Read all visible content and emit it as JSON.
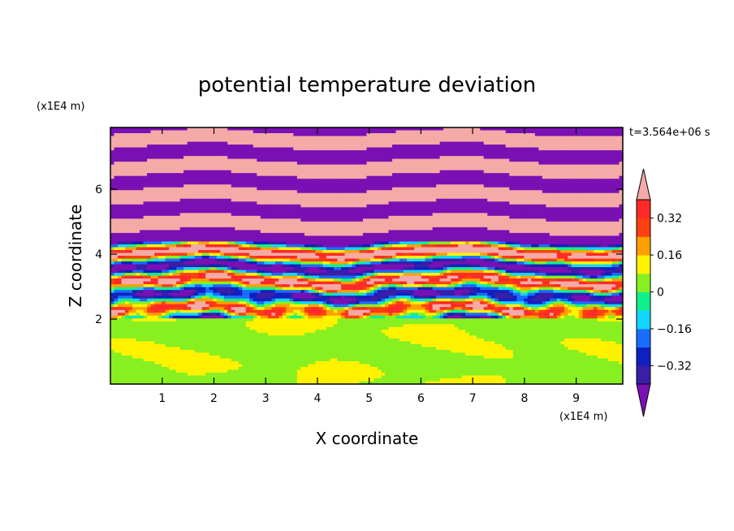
{
  "chart_data": {
    "type": "heatmap",
    "title": "potential temperature deviation",
    "time_label": "t=3.564e+06 s",
    "xlabel": "X coordinate",
    "ylabel": "Z coordinate",
    "x_unit": "(x1E4 m)",
    "y_unit": "(x1E4 m)",
    "xlim": [
      0,
      9.9
    ],
    "ylim": [
      0,
      7.9
    ],
    "x_ticks": [
      {
        "value": 1,
        "label": "1"
      },
      {
        "value": 2,
        "label": "2"
      },
      {
        "value": 3,
        "label": "3"
      },
      {
        "value": 4,
        "label": "4"
      },
      {
        "value": 5,
        "label": "5"
      },
      {
        "value": 6,
        "label": "6"
      },
      {
        "value": 7,
        "label": "7"
      },
      {
        "value": 8,
        "label": "8"
      },
      {
        "value": 9,
        "label": "9"
      }
    ],
    "y_ticks": [
      {
        "value": 2,
        "label": "2"
      },
      {
        "value": 4,
        "label": "4"
      },
      {
        "value": 6,
        "label": "6"
      }
    ],
    "colorbar": {
      "levels": [
        -0.4,
        -0.32,
        -0.24,
        -0.16,
        -0.08,
        0,
        0.08,
        0.16,
        0.24,
        0.32,
        0.4
      ],
      "colors": [
        "#7a10b4",
        "#3a1ea8",
        "#1020c0",
        "#1a6cff",
        "#12d6ff",
        "#10f08c",
        "#88f020",
        "#fff200",
        "#ffa000",
        "#ff4010",
        "#ff2a2a",
        "#f4aaa6"
      ],
      "tick_labels": [
        {
          "value": 0.32,
          "label": "0.32"
        },
        {
          "value": 0.16,
          "label": "0.16"
        },
        {
          "value": 0,
          "label": "0"
        },
        {
          "value": -0.16,
          "label": "−0.16"
        },
        {
          "value": -0.32,
          "label": "−0.32"
        }
      ],
      "extend": "both"
    },
    "field_description": {
      "lower_layer_top": 2.0,
      "lower_layer_values": [
        0,
        0.08
      ],
      "upper_layer_alternating_values": [
        0.4,
        -0.4
      ],
      "transition_band": [
        2.0,
        4.8
      ]
    }
  }
}
